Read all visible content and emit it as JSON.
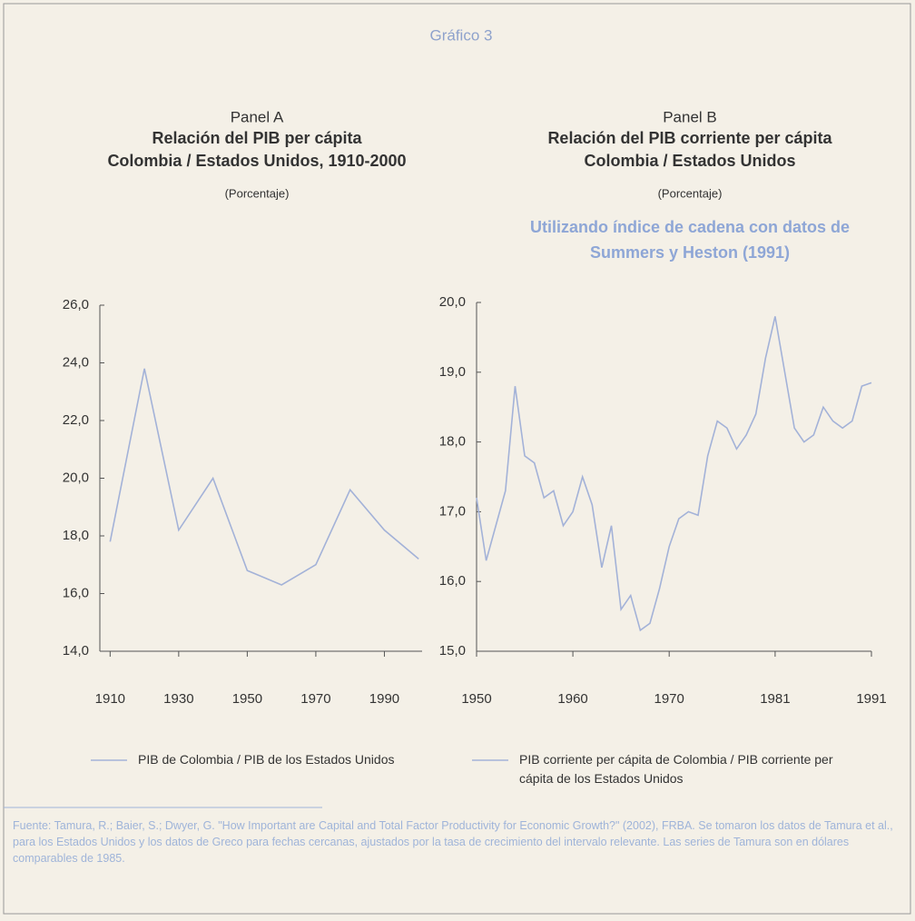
{
  "header": {
    "title": "Gráfico 3"
  },
  "chart_data": [
    {
      "type": "line",
      "panel": "Panel A",
      "title": [
        "Relación del PIB per cápita",
        "Colombia / Estados Unidos, 1910-2000"
      ],
      "subtitle": "(Porcentaje)",
      "x": [
        1910,
        1920,
        1930,
        1940,
        1950,
        1960,
        1970,
        1980,
        1990,
        2000
      ],
      "series": [
        {
          "name": "PIB de Colombia / PIB de los Estados Unidos",
          "color": "#a3b2d8",
          "values": [
            17.8,
            23.8,
            18.2,
            20.0,
            16.8,
            16.3,
            17.0,
            19.6,
            18.2,
            17.2
          ]
        }
      ],
      "xlim": [
        1907,
        2001
      ],
      "xticks": [
        1910,
        1930,
        1950,
        1970,
        1990
      ],
      "ylim": [
        14,
        26
      ],
      "yticks": [
        {
          "value": 14,
          "label": "14,0"
        },
        {
          "value": 16,
          "label": "16,0"
        },
        {
          "value": 18,
          "label": "18,0"
        },
        {
          "value": 20,
          "label": "20,0"
        },
        {
          "value": 22,
          "label": "22,0"
        },
        {
          "value": 24,
          "label": "24,0"
        },
        {
          "value": 26,
          "label": "26,0"
        }
      ]
    },
    {
      "type": "line",
      "panel": "Panel B",
      "title": [
        "Relación del PIB corriente per cápita",
        "Colombia / Estados Unidos"
      ],
      "subtitle": "(Porcentaje)",
      "note": [
        "Utilizando índice de cadena con datos de",
        "Summers y Heston (1991)"
      ],
      "x": [
        1950,
        1951,
        1952,
        1953,
        1954,
        1955,
        1956,
        1957,
        1958,
        1959,
        1960,
        1961,
        1962,
        1963,
        1964,
        1965,
        1966,
        1967,
        1968,
        1969,
        1970,
        1971,
        1972,
        1973,
        1974,
        1975,
        1976,
        1977,
        1978,
        1979,
        1980,
        1981,
        1982,
        1983,
        1984,
        1985,
        1986,
        1987,
        1988,
        1989,
        1990,
        1991
      ],
      "series": [
        {
          "name": "PIB corriente per cápita de Colombia / PIB corriente per cápita de los Estados Unidos",
          "color": "#a3b2d8",
          "values": [
            17.2,
            16.3,
            16.8,
            17.3,
            18.8,
            17.8,
            17.7,
            17.2,
            17.3,
            16.8,
            17.0,
            17.5,
            17.1,
            16.2,
            16.8,
            15.6,
            15.8,
            15.3,
            15.4,
            15.9,
            16.5,
            16.9,
            17.0,
            16.95,
            17.8,
            18.3,
            18.2,
            17.9,
            18.1,
            18.4,
            19.2,
            19.8,
            19.0,
            18.2,
            18.0,
            18.1,
            18.5,
            18.3,
            18.2,
            18.3,
            18.8,
            18.85
          ]
        }
      ],
      "xlim": [
        1950,
        1991
      ],
      "xticks": [
        1950,
        1960,
        1970,
        1981,
        1991
      ],
      "ylim": [
        15,
        20
      ],
      "yticks": [
        {
          "value": 15,
          "label": "15,0"
        },
        {
          "value": 16,
          "label": "16,0"
        },
        {
          "value": 17,
          "label": "17,0"
        },
        {
          "value": 18,
          "label": "18,0"
        },
        {
          "value": 19,
          "label": "19,0"
        },
        {
          "value": 20,
          "label": "20,0"
        }
      ]
    }
  ],
  "footer": {
    "source": "Fuente: Tamura, R.; Baier, S.; Dwyer, G. \"How Important are Capital and Total Factor Productivity for Economic Growth?\" (2002), FRBA. Se tomaron los datos de Tamura et al., para los Estados Unidos y los datos de Greco para fechas cercanas, ajustados por la tasa de crecimiento del intervalo relevante. Las series de Tamura son en dólares comparables de 1985."
  }
}
